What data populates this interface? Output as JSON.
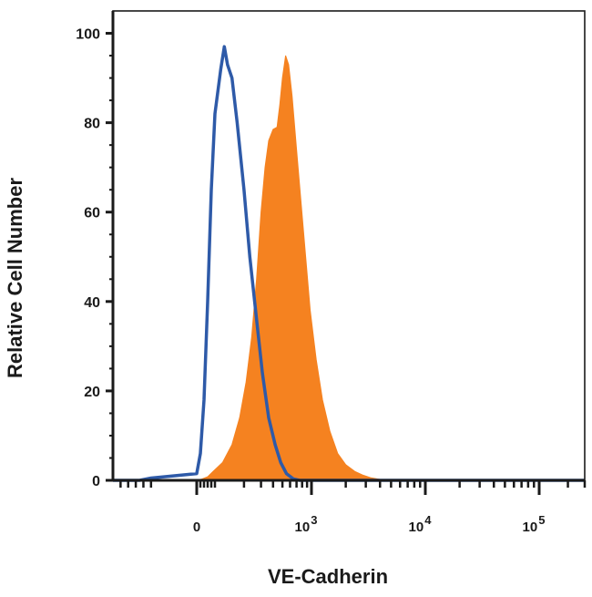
{
  "chart_data": {
    "type": "area",
    "title": "",
    "xlabel": "VE-Cadherin",
    "ylabel": "Relative Cell Number",
    "x_scale": "biexponential",
    "xlim": [
      -120,
      300000
    ],
    "ylim": [
      0,
      105
    ],
    "y_ticks": [
      0,
      20,
      40,
      60,
      80,
      100
    ],
    "x_ticks": [
      {
        "value": 0,
        "base": "0",
        "exp": ""
      },
      {
        "value": 1000,
        "base": "10",
        "exp": "3"
      },
      {
        "value": 10000,
        "base": "10",
        "exp": "4"
      },
      {
        "value": 100000,
        "base": "10",
        "exp": "5"
      }
    ],
    "grid": false,
    "legend": "none",
    "series": [
      {
        "style": "filled",
        "color": "#f58220",
        "points": [
          [
            -120,
            0
          ],
          [
            0,
            0
          ],
          [
            30,
            0.3
          ],
          [
            60,
            0.8
          ],
          [
            90,
            2
          ],
          [
            120,
            4
          ],
          [
            150,
            8
          ],
          [
            180,
            14
          ],
          [
            210,
            22
          ],
          [
            240,
            32
          ],
          [
            270,
            45
          ],
          [
            300,
            60
          ],
          [
            330,
            70
          ],
          [
            360,
            76
          ],
          [
            400,
            78.5
          ],
          [
            440,
            79
          ],
          [
            470,
            84
          ],
          [
            500,
            90
          ],
          [
            540,
            95
          ],
          [
            580,
            93
          ],
          [
            630,
            86
          ],
          [
            700,
            74
          ],
          [
            780,
            62
          ],
          [
            870,
            50
          ],
          [
            970,
            38
          ],
          [
            1100,
            27
          ],
          [
            1250,
            18
          ],
          [
            1450,
            11
          ],
          [
            1700,
            6
          ],
          [
            2000,
            3.5
          ],
          [
            2400,
            2
          ],
          [
            2800,
            1.2
          ],
          [
            3300,
            0.6
          ],
          [
            4000,
            0.2
          ],
          [
            5000,
            0
          ],
          [
            300000,
            0
          ]
        ]
      },
      {
        "style": "outline",
        "color": "#2e5aa8",
        "points": [
          [
            -120,
            0
          ],
          [
            -50,
            0
          ],
          [
            -20,
            0.5
          ],
          [
            0,
            1.5
          ],
          [
            20,
            6
          ],
          [
            40,
            18
          ],
          [
            60,
            40
          ],
          [
            80,
            65
          ],
          [
            100,
            82
          ],
          [
            115,
            92
          ],
          [
            125,
            97
          ],
          [
            135,
            93
          ],
          [
            150,
            90
          ],
          [
            170,
            80
          ],
          [
            200,
            65
          ],
          [
            230,
            50
          ],
          [
            270,
            36
          ],
          [
            310,
            24
          ],
          [
            360,
            14
          ],
          [
            420,
            8
          ],
          [
            480,
            4
          ],
          [
            550,
            1.5
          ],
          [
            650,
            0.3
          ],
          [
            750,
            0
          ],
          [
            300000,
            0
          ]
        ]
      }
    ]
  }
}
